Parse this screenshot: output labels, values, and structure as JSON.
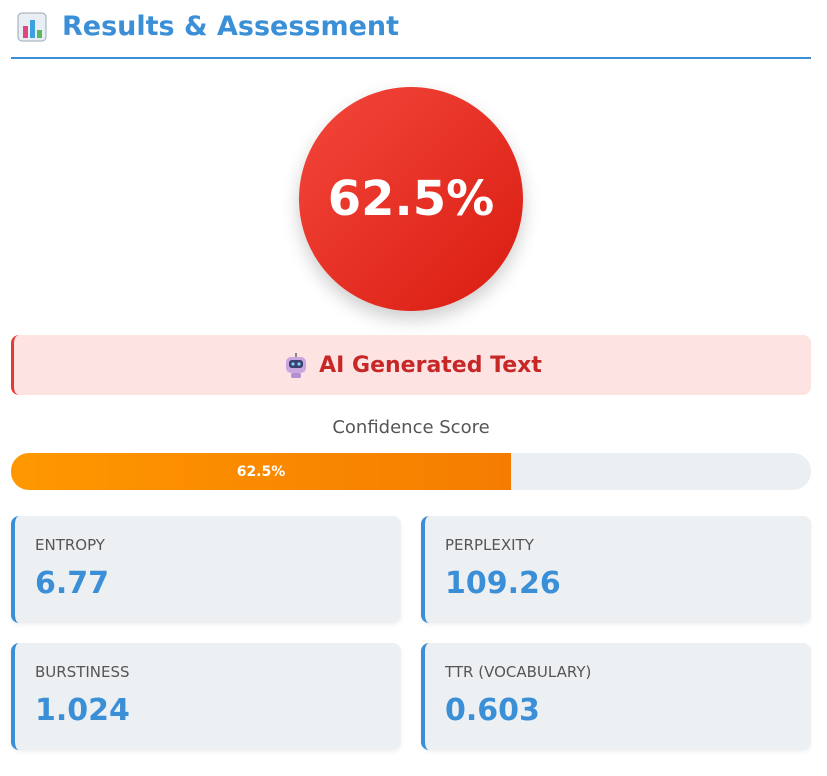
{
  "header": {
    "title": "Results & Assessment"
  },
  "score_circle": "62.5%",
  "verdict": "AI Generated Text",
  "confidence": {
    "label": "Confidence Score",
    "value": 62.5,
    "value_label": "62.5%"
  },
  "metrics": [
    {
      "label": "ENTROPY",
      "value": 6.77
    },
    {
      "label": "PERPLEXITY",
      "value": 109.26
    },
    {
      "label": "BURSTINESS",
      "value": 1.024
    },
    {
      "label": "TTR (VOCABULARY)",
      "value": 0.603
    }
  ]
}
